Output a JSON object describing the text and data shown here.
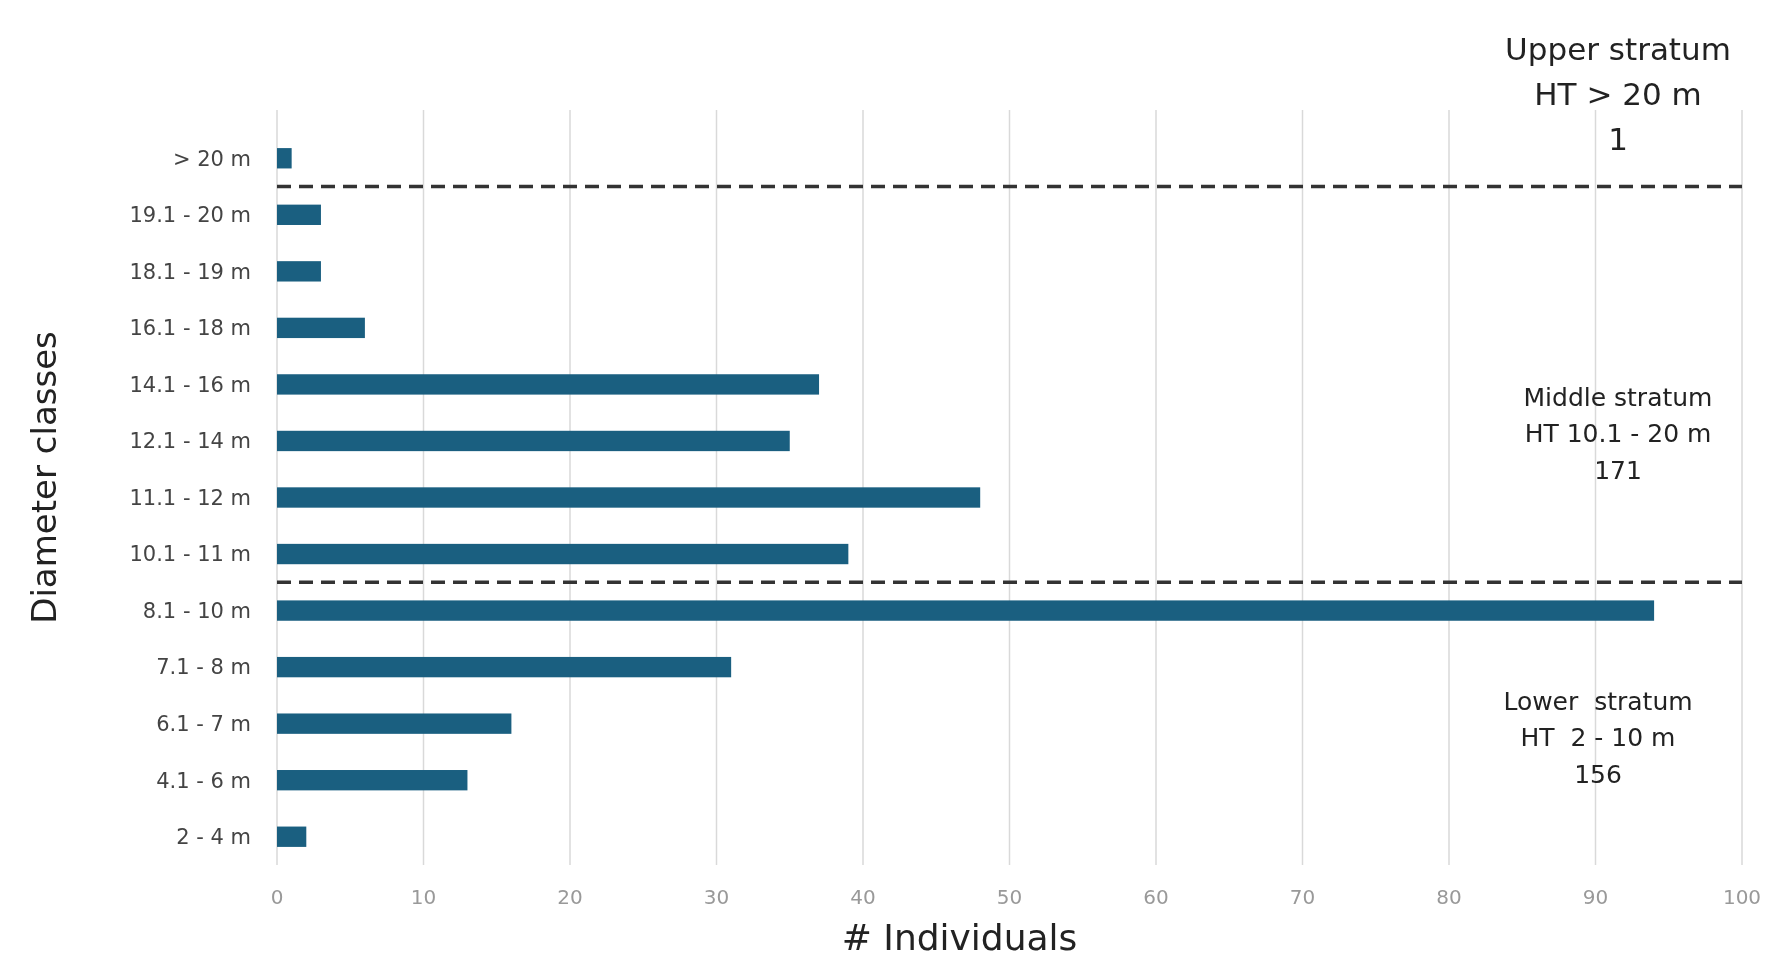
{
  "chart_data": {
    "type": "bar",
    "orientation": "horizontal",
    "xlabel": "# Individuals",
    "ylabel": "Diameter classes",
    "categories": [
      "> 20 m",
      "19.1 - 20 m",
      "18.1 - 19 m",
      "16.1 - 18 m",
      "14.1 - 16 m",
      "12.1 - 14 m",
      "11.1 - 12 m",
      "10.1 - 11 m",
      "8.1 - 10 m",
      "7.1 - 8 m",
      "6.1 - 7 m",
      "4.1 - 6 m",
      "2 - 4 m"
    ],
    "values": [
      1,
      3,
      3,
      6,
      37,
      35,
      48,
      39,
      94,
      31,
      16,
      13,
      2
    ],
    "color": "#1a5f80",
    "xlim": [
      0,
      100
    ],
    "xticks": [
      0,
      10,
      20,
      30,
      40,
      50,
      60,
      70,
      80,
      90,
      100
    ],
    "grid": "x",
    "ref_lines": [
      {
        "axis": "y",
        "value": "> 20 m",
        "line_style": "dashed",
        "color": "#333333"
      },
      {
        "axis": "y",
        "value": "10.1 - 11 m",
        "line_style": "dashed",
        "color": "#333333"
      }
    ],
    "annotations": [
      "Upper stratum\nHT > 20 m\n1",
      "Middle stratum\nHT 10.1 - 20 m\n171",
      "Lower  stratum\nHT  2 - 10 m\n156"
    ]
  }
}
